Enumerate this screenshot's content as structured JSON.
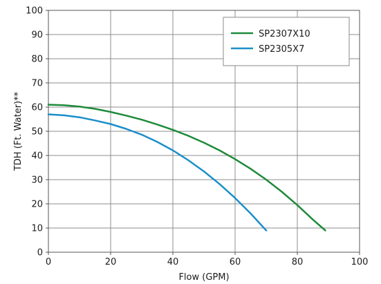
{
  "chart_data": {
    "type": "line",
    "xlabel": "Flow (GPM)",
    "ylabel": "TDH (Ft. Water)**",
    "xlim": [
      0,
      100
    ],
    "ylim": [
      0,
      100
    ],
    "x_ticks": [
      "0",
      "20",
      "40",
      "60",
      "80",
      "100"
    ],
    "y_ticks": [
      "0",
      "10",
      "20",
      "30",
      "40",
      "50",
      "60",
      "70",
      "80",
      "90",
      "100"
    ],
    "grid": true,
    "legend_position": "top-right",
    "series": [
      {
        "name": "SP2307X10",
        "color": "#1e8a3a",
        "x": [
          0,
          5,
          10,
          15,
          20,
          25,
          30,
          35,
          40,
          45,
          50,
          55,
          60,
          65,
          70,
          75,
          80,
          85,
          89
        ],
        "y": [
          61,
          60.8,
          60.2,
          59.3,
          58,
          56.5,
          54.8,
          52.8,
          50.6,
          48.1,
          45.3,
          42.1,
          38.5,
          34.5,
          30,
          25,
          19.5,
          13.5,
          9
        ]
      },
      {
        "name": "SP2305X7",
        "color": "#1a8fc9",
        "x": [
          0,
          5,
          10,
          15,
          20,
          25,
          30,
          35,
          40,
          45,
          50,
          55,
          60,
          65,
          70
        ],
        "y": [
          57,
          56.6,
          55.8,
          54.5,
          53,
          51,
          48.6,
          45.6,
          42.1,
          38,
          33.4,
          28.2,
          22.4,
          16,
          9
        ]
      }
    ]
  }
}
